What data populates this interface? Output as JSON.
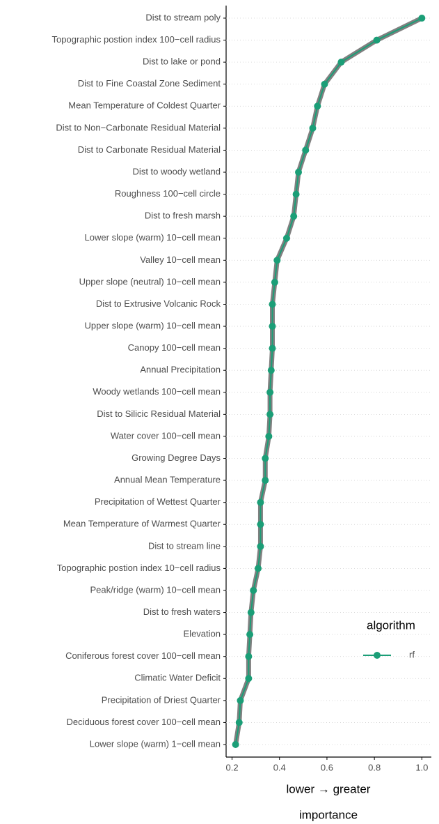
{
  "chart_data": {
    "type": "line",
    "orientation": "horizontal",
    "x_label": [
      "lower → greater",
      "importance"
    ],
    "categories": [
      "Dist to stream poly",
      "Topographic postion index 100−cell radius",
      "Dist to lake or pond",
      "Dist to Fine Coastal Zone Sediment",
      "Mean Temperature of Coldest Quarter",
      "Dist to Non−Carbonate Residual Material",
      "Dist to Carbonate Residual Material",
      "Dist to woody wetland",
      "Roughness 100−cell circle",
      "Dist to fresh marsh",
      "Lower slope (warm) 10−cell mean",
      "Valley 10−cell mean",
      "Upper slope (neutral) 10−cell mean",
      "Dist to Extrusive Volcanic Rock",
      "Upper slope (warm) 10−cell mean",
      "Canopy 100−cell mean",
      "Annual Precipitation",
      "Woody wetlands 100−cell mean",
      "Dist to Silicic Residual Material",
      "Water cover 100−cell mean",
      "Growing Degree Days",
      "Annual Mean Temperature",
      "Precipitation of Wettest Quarter",
      "Mean Temperature of Warmest Quarter",
      "Dist to stream line",
      "Topographic postion index 10−cell radius",
      "Peak/ridge (warm) 10−cell mean",
      "Dist to fresh waters",
      "Elevation",
      "Coniferous forest cover 100−cell mean",
      "Climatic Water Deficit",
      "Precipitation of Driest Quarter",
      "Deciduous forest cover 100−cell mean",
      "Lower slope (warm) 1−cell mean"
    ],
    "series": [
      {
        "name": "rf",
        "color": "#1b9e77",
        "outline_color": "#808080",
        "values": [
          1.0,
          0.81,
          0.66,
          0.59,
          0.56,
          0.54,
          0.51,
          0.48,
          0.47,
          0.46,
          0.43,
          0.39,
          0.38,
          0.37,
          0.37,
          0.37,
          0.365,
          0.36,
          0.36,
          0.355,
          0.34,
          0.34,
          0.32,
          0.32,
          0.32,
          0.31,
          0.29,
          0.28,
          0.275,
          0.27,
          0.27,
          0.235,
          0.23,
          0.215
        ]
      }
    ],
    "legend_title": "algorithm",
    "xlim": [
      0.175,
      1.04
    ],
    "xticks": [
      {
        "value": 0.2,
        "label": "0.2"
      },
      {
        "value": 0.4,
        "label": "0.4"
      },
      {
        "value": 0.6,
        "label": "0.6"
      },
      {
        "value": 0.8,
        "label": "0.8"
      },
      {
        "value": 1.0,
        "label": "1.0"
      }
    ],
    "grid": true
  }
}
